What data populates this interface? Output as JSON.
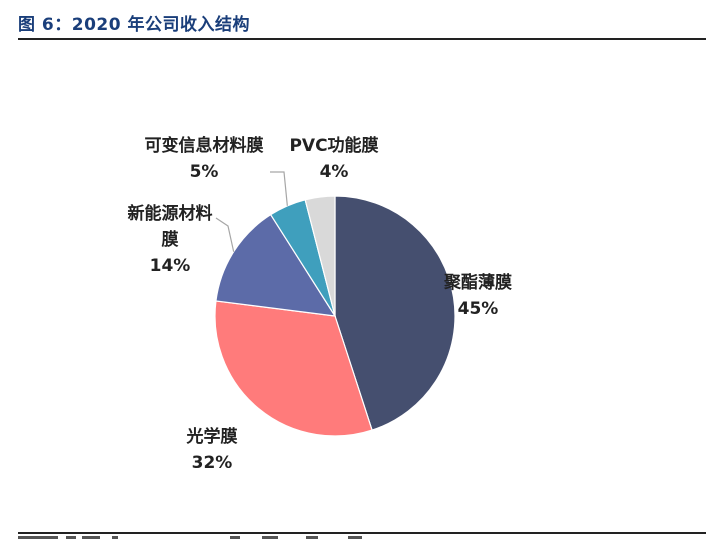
{
  "figure": {
    "title": "图 6：2020 年公司收入结构"
  },
  "colors": {
    "title": "#1a3e7a",
    "rule": "#222222"
  },
  "chart_data": {
    "type": "pie",
    "title": "",
    "slices": [
      {
        "name": "聚酯薄膜",
        "value": 45,
        "label": "45%",
        "color": "#454f6f"
      },
      {
        "name": "光学膜",
        "value": 32,
        "label": "32%",
        "color": "#ff7b7b"
      },
      {
        "name": "新能源材料膜",
        "name_lines": [
          "新能源材料",
          "膜"
        ],
        "value": 14,
        "label": "14%",
        "color": "#5c6ba8"
      },
      {
        "name": "可变信息材料膜",
        "value": 5,
        "label": "5%",
        "color": "#3f9fbd"
      },
      {
        "name": "PVC功能膜",
        "value": 4,
        "label": "4%",
        "color": "#d9d9d9"
      }
    ],
    "start": "12 o'clock",
    "direction": "clockwise",
    "legend": "none"
  }
}
